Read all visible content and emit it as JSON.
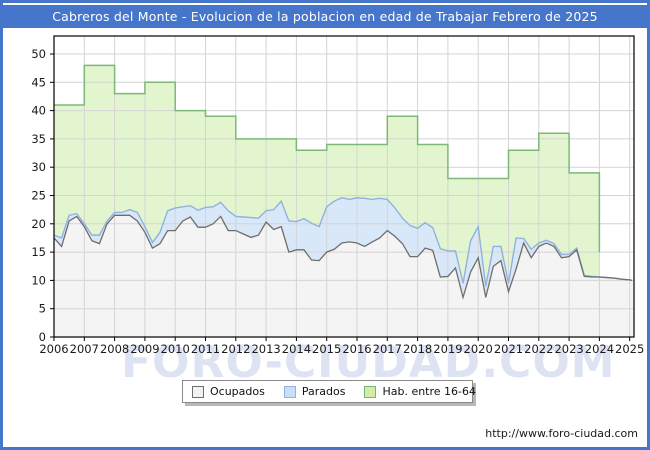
{
  "title": "Cabreros del Monte - Evolucion de la poblacion en edad de Trabajar Febrero de 2025",
  "watermark": "FORO-CIUDAD.COM",
  "footer_url": "http://www.foro-ciudad.com",
  "legend": {
    "items": [
      {
        "label": "Ocupados",
        "fill": "#f2f2f2",
        "stroke": "#6e6e6e"
      },
      {
        "label": "Parados",
        "fill": "#cbdff4",
        "stroke": "#8fb2e0"
      },
      {
        "label": "Hab. entre 16-64",
        "fill": "#d3eca6",
        "stroke": "#7cb27c"
      }
    ]
  },
  "colors": {
    "frame_blue": "#4576cb",
    "plot_border": "#000000",
    "gridline": "#d4d4d4",
    "ocupados_fill": "#f4f4f4",
    "ocupados_line": "#6e6e6e",
    "parados_fill": "#d9e8f8",
    "parados_line": "#8fb2e0",
    "hab_fill": "#e3f5cf",
    "hab_line": "#7db87a",
    "axis_text": "#1a1a1a"
  },
  "chart_data": {
    "type": "area",
    "title": "Cabreros del Monte - Evolucion de la poblacion en edad de Trabajar Febrero de 2025",
    "ylim": [
      0,
      53
    ],
    "y_ticks": [
      0,
      5,
      10,
      15,
      20,
      25,
      30,
      35,
      40,
      45,
      50
    ],
    "x_ticks": [
      2006,
      2007,
      2008,
      2009,
      2010,
      2011,
      2012,
      2013,
      2014,
      2015,
      2016,
      2017,
      2018,
      2019,
      2020,
      2021,
      2022,
      2023,
      2024,
      2025
    ],
    "grid": true,
    "legend_position": "bottom-center",
    "x_start": 2006.0,
    "x_step": 0.25,
    "x_last": 2025.08,
    "series": [
      {
        "name": "Ocupados",
        "role": "base-line-area",
        "values": [
          17.5,
          16,
          20.5,
          21.3,
          19.5,
          17,
          16.5,
          20,
          21.5,
          21.5,
          21.5,
          20.5,
          18.5,
          15.7,
          16.5,
          18.8,
          18.8,
          20.5,
          21.2,
          19.4,
          19.4,
          20,
          21.3,
          18.8,
          18.8,
          18.2,
          17.6,
          18,
          20.3,
          19,
          19.5,
          15,
          15.4,
          15.4,
          13.6,
          13.5,
          15,
          15.5,
          16.6,
          16.8,
          16.6,
          16,
          16.8,
          17.5,
          18.8,
          17.8,
          16.5,
          14.2,
          14.2,
          15.7,
          15.3,
          10.6,
          10.7,
          12.2,
          7,
          11.5,
          14,
          7,
          12.5,
          13.5,
          8,
          12,
          16.6,
          14,
          16,
          16.6,
          16,
          14,
          14.2,
          15.4,
          10.7,
          10.6,
          10.6,
          10.5,
          10.4,
          10.2,
          10.1,
          10
        ]
      },
      {
        "name": "Parados",
        "role": "stacked-band-on-ocupados",
        "values": [
          0.5,
          1.5,
          1,
          0.5,
          0.5,
          1,
          1.5,
          0.5,
          0.5,
          0.5,
          1,
          1.5,
          1,
          1,
          2,
          3.5,
          4,
          2.5,
          2,
          3,
          3.5,
          3,
          2.5,
          3.5,
          2.5,
          3,
          3.5,
          3,
          2,
          3.5,
          4.5,
          5.5,
          5,
          5.5,
          6.5,
          6,
          8,
          8.5,
          8,
          7.5,
          8,
          8.5,
          7.5,
          7,
          5.5,
          5,
          4.5,
          5.5,
          5,
          4.5,
          4,
          5,
          4.5,
          3,
          2.5,
          5.5,
          5.5,
          2,
          3.5,
          2.5,
          1.5,
          5.5,
          0.8,
          1.5,
          0.6,
          0.5,
          0.5,
          0.6,
          0.4,
          0.3,
          0.2,
          0.1,
          0,
          0,
          0,
          0,
          0,
          0
        ]
      },
      {
        "name": "Hab. entre 16-64",
        "role": "annual-step-area",
        "years": [
          2006,
          2007,
          2008,
          2009,
          2010,
          2011,
          2012,
          2013,
          2014,
          2015,
          2016,
          2017,
          2018,
          2019,
          2020,
          2021,
          2022,
          2023
        ],
        "values": [
          41,
          48,
          43,
          45,
          40,
          39,
          35,
          35,
          33,
          34,
          34,
          39,
          34,
          28,
          28,
          33,
          36,
          29
        ],
        "end_year": 2024.0
      }
    ]
  }
}
